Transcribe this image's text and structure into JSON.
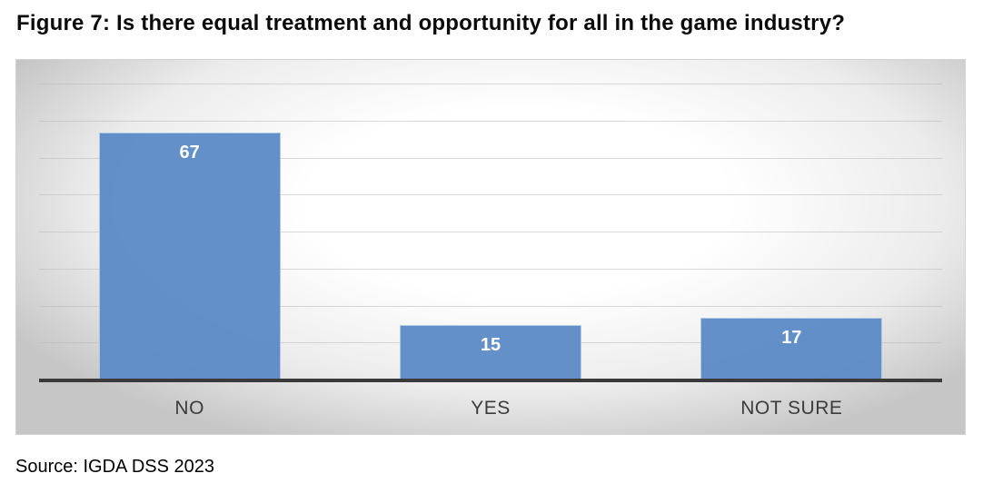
{
  "figure": {
    "title": "Figure 7: Is there equal treatment and opportunity for all in the game industry?",
    "source": "Source: IGDA DSS 2023"
  },
  "chart_data": {
    "type": "bar",
    "title": "Figure 7: Is there equal treatment and opportunity for all in the game industry?",
    "categories": [
      "NO",
      "YES",
      "NOT SURE"
    ],
    "values": [
      67,
      15,
      17
    ],
    "xlabel": "",
    "ylabel": "",
    "ylim": [
      0,
      80
    ],
    "gridline_step": 10,
    "grid": true,
    "legend": "none",
    "data_label_position": "inside-end",
    "colors": {
      "bar_fill": "#5b8ac5",
      "data_label": "#ffffff",
      "axis_line": "#3a3a3a",
      "gridline": "#b9b9b9",
      "category_label": "#3c3c3c",
      "background_edge": "#c6c6c6",
      "background_center": "#ffffff"
    }
  }
}
